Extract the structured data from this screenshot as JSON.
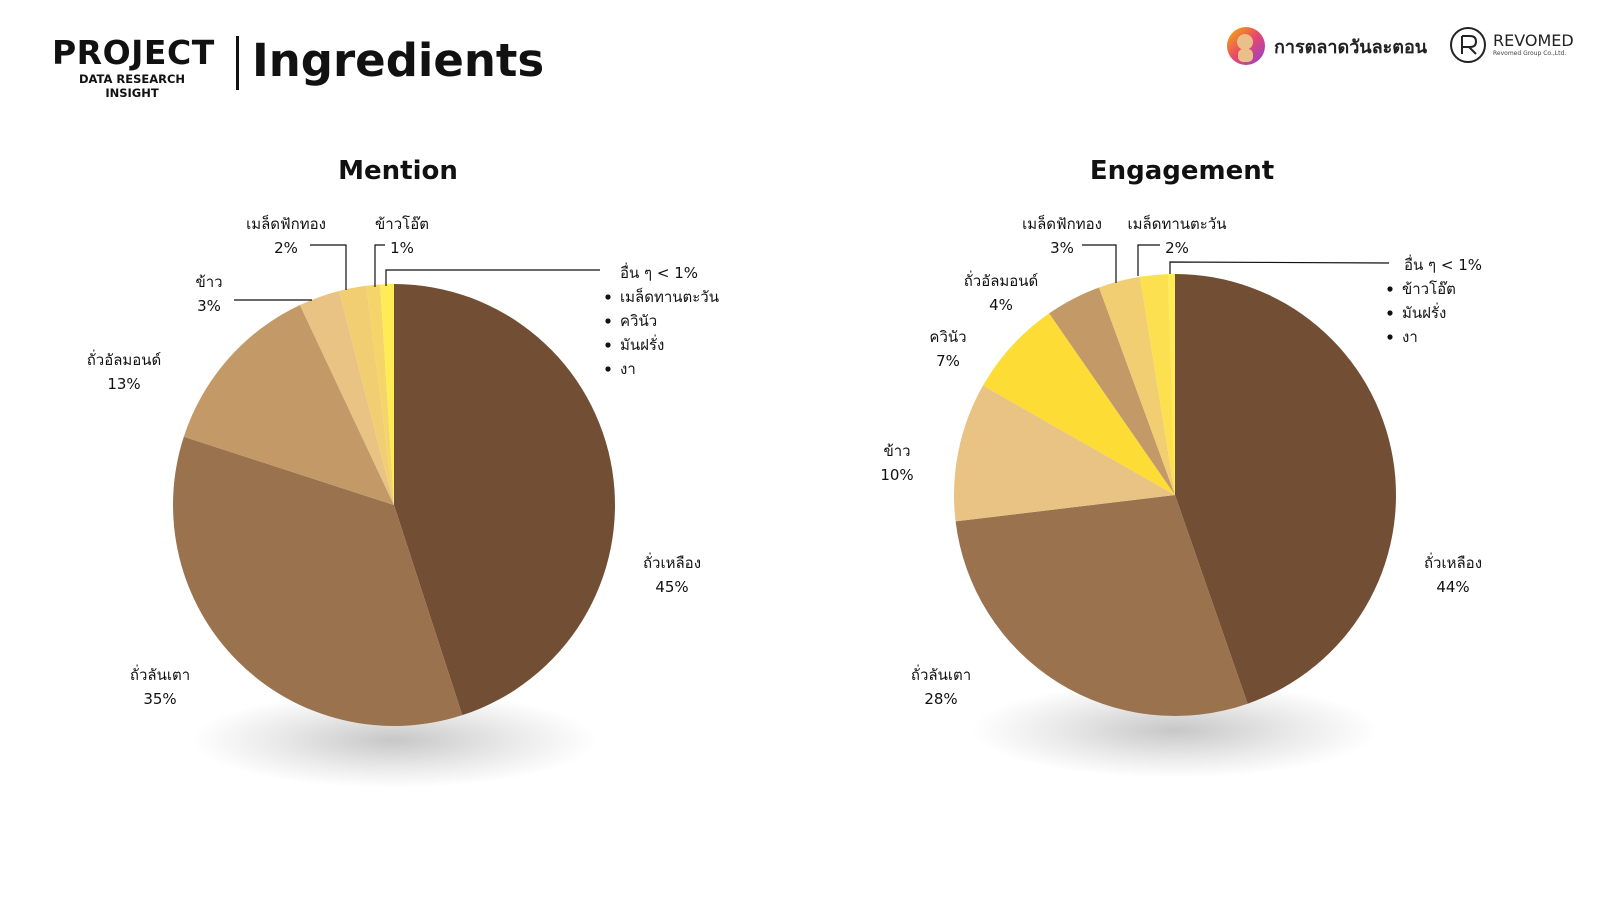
{
  "header": {
    "brand_title": "PROJECT",
    "brand_subtitle": "DATA RESEARCH INSIGHT",
    "page_title": "Ingredients"
  },
  "logos": {
    "logo1_text": "การตลาดวันละตอน",
    "logo2_name": "REVOMED",
    "logo2_sub": "Revomed Group Co.,Ltd."
  },
  "colors": {
    "soybean": "#724E35",
    "peanut": "#9A734E",
    "almond": "#C39A67",
    "rice": "#E8C383",
    "pumpkin_seed": "#F2CE73",
    "oat": "#F5D56A",
    "sunflower_seed": "#FCE04F",
    "quinoa": "#FDDC35",
    "others": "#FFEB55"
  },
  "chart_data": [
    {
      "type": "pie",
      "title": "Mention",
      "slices": [
        {
          "label": "ถั่วเหลือง",
          "value": 45,
          "value_label": "45%",
          "color_key": "soybean"
        },
        {
          "label": "ถั่วลันเตา",
          "value": 35,
          "value_label": "35%",
          "color_key": "peanut"
        },
        {
          "label": "ถั่วอัลมอนด์",
          "value": 13,
          "value_label": "13%",
          "color_key": "almond"
        },
        {
          "label": "ข้าว",
          "value": 3,
          "value_label": "3%",
          "color_key": "rice"
        },
        {
          "label": "เมล็ดฟักทอง",
          "value": 2,
          "value_label": "2%",
          "color_key": "pumpkin_seed"
        },
        {
          "label": "ข้าวโอ๊ต",
          "value": 1,
          "value_label": "1%",
          "color_key": "oat"
        },
        {
          "label": "อื่น ๆ < 1%",
          "value": 1,
          "value_label": "",
          "color_key": "others",
          "items": [
            "เมล็ดทานตะวัน",
            "ควินัว",
            "มันฝรั่ง",
            "งา"
          ]
        }
      ]
    },
    {
      "type": "pie",
      "title": "Engagement",
      "slices": [
        {
          "label": "ถั่วเหลือง",
          "value": 44,
          "value_label": "44%",
          "color_key": "soybean"
        },
        {
          "label": "ถั่วลันเตา",
          "value": 28,
          "value_label": "28%",
          "color_key": "peanut"
        },
        {
          "label": "ข้าว",
          "value": 10,
          "value_label": "10%",
          "color_key": "rice"
        },
        {
          "label": "ควินัว",
          "value": 7,
          "value_label": "7%",
          "color_key": "quinoa"
        },
        {
          "label": "ถั่วอัลมอนด์",
          "value": 4,
          "value_label": "4%",
          "color_key": "almond"
        },
        {
          "label": "เมล็ดฟักทอง",
          "value": 3,
          "value_label": "3%",
          "color_key": "pumpkin_seed"
        },
        {
          "label": "เมล็ดทานตะวัน",
          "value": 2,
          "value_label": "2%",
          "color_key": "sunflower_seed"
        },
        {
          "label": "อื่น ๆ < 1%",
          "value": 0.5,
          "value_label": "",
          "color_key": "others",
          "items": [
            "ข้าวโอ๊ต",
            "มันฝรั่ง",
            "งา"
          ]
        }
      ]
    }
  ]
}
